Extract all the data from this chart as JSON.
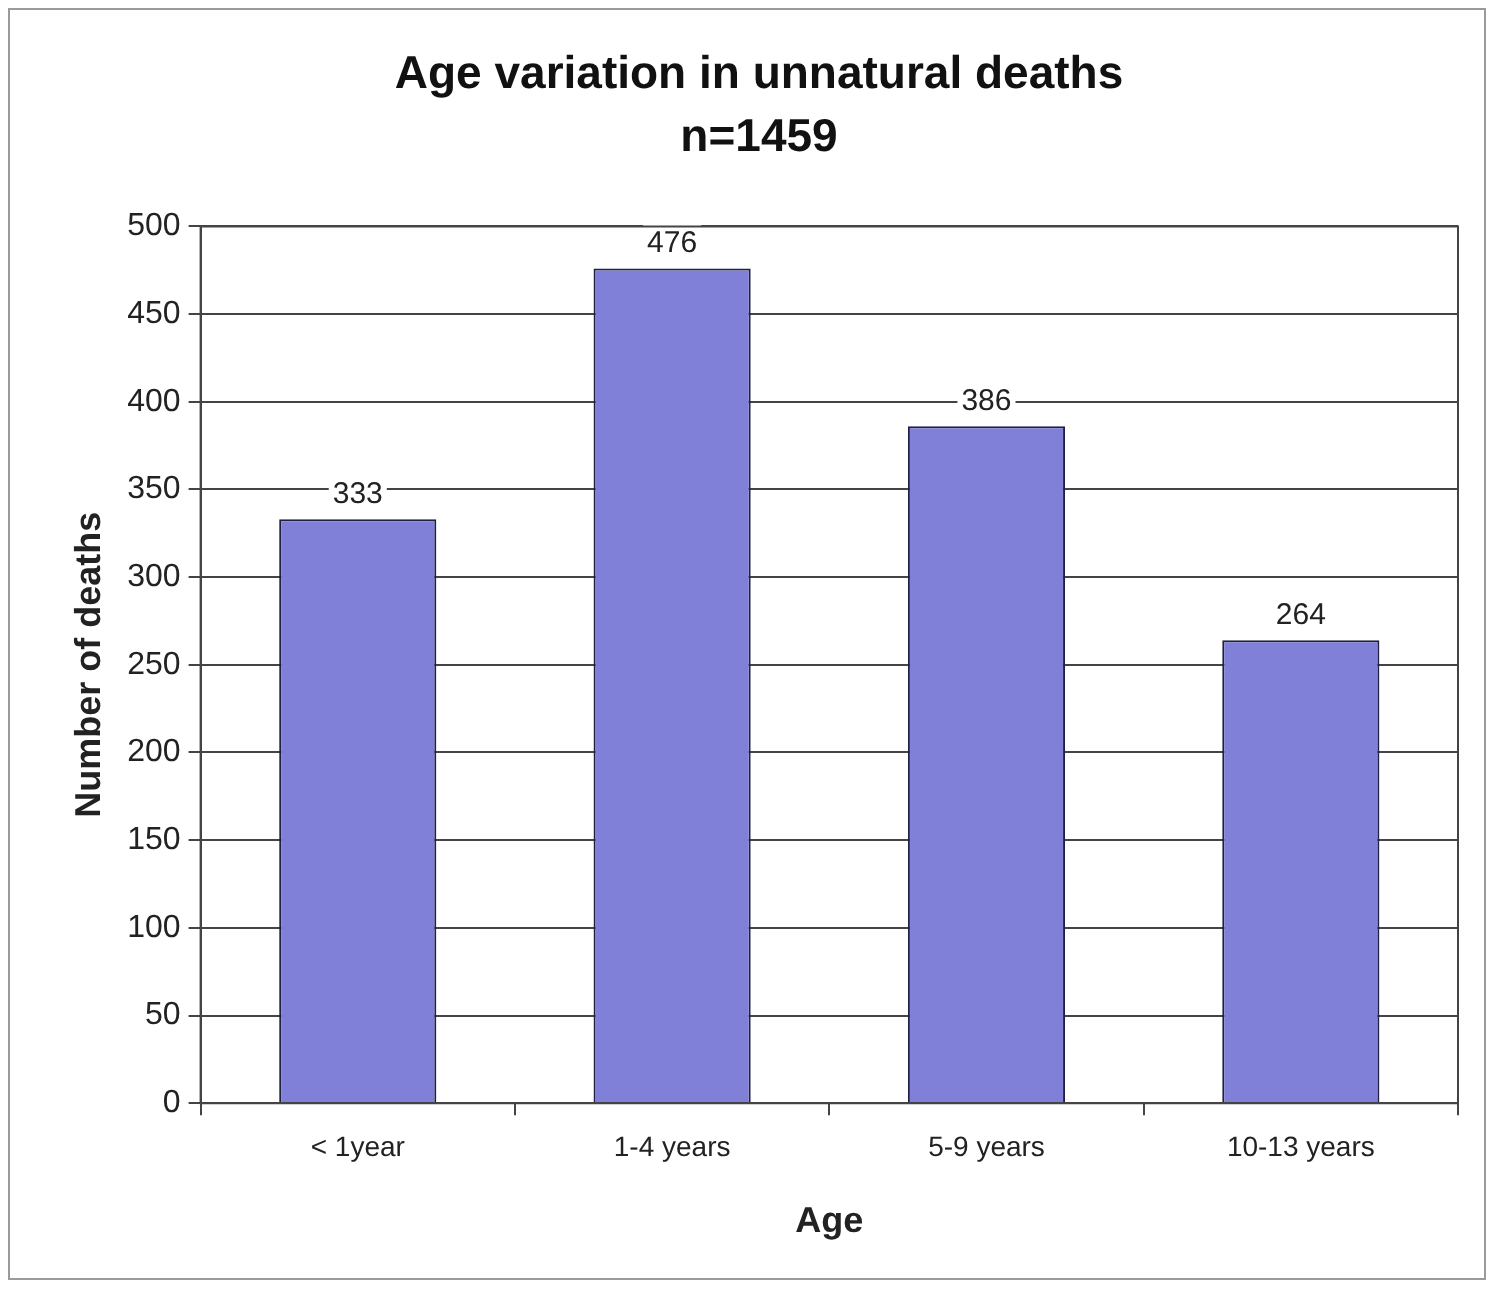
{
  "chart_data": {
    "type": "bar",
    "title": "Age variation in unnatural deaths",
    "subtitle": "n=1459",
    "xlabel": "Age",
    "ylabel": "Number of deaths",
    "categories": [
      "< 1year",
      "1-4 years",
      "5-9 years",
      "10-13 years"
    ],
    "values": [
      333,
      476,
      386,
      264
    ],
    "color": "#8080d8",
    "ylim": [
      0,
      500
    ],
    "yticks": [
      0,
      50,
      100,
      150,
      200,
      250,
      300,
      350,
      400,
      450,
      500
    ],
    "grid": "y",
    "data_labels": true,
    "legend": false
  }
}
